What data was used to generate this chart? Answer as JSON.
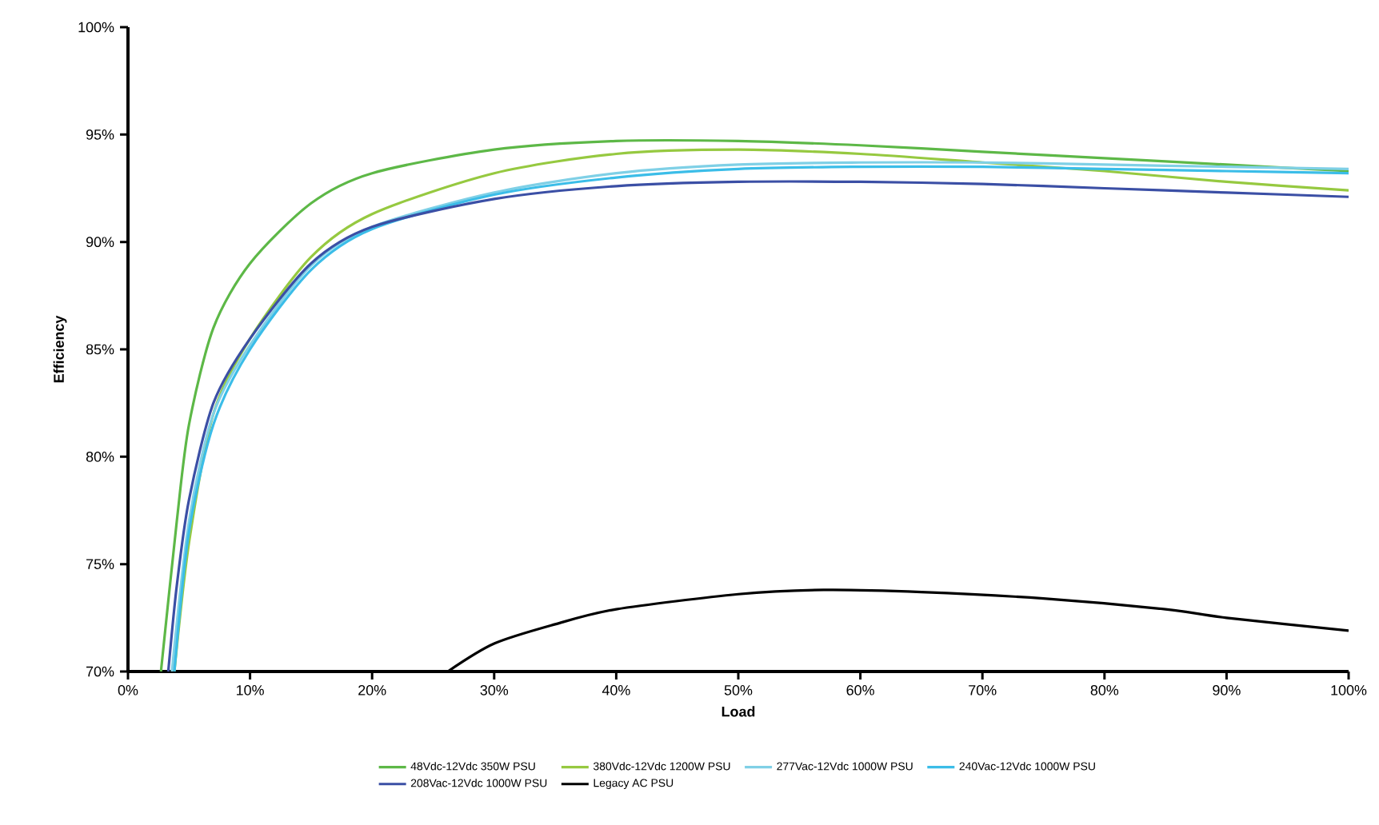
{
  "chart_data": {
    "type": "line",
    "xlabel": "Load",
    "ylabel": "Efficiency",
    "xlim": [
      0,
      100
    ],
    "ylim": [
      70,
      100
    ],
    "xticks": [
      {
        "value": 0,
        "label": "0%"
      },
      {
        "value": 10,
        "label": "10%"
      },
      {
        "value": 20,
        "label": "20%"
      },
      {
        "value": 30,
        "label": "30%"
      },
      {
        "value": 40,
        "label": "40%"
      },
      {
        "value": 50,
        "label": "50%"
      },
      {
        "value": 60,
        "label": "60%"
      },
      {
        "value": 70,
        "label": "70%"
      },
      {
        "value": 80,
        "label": "80%"
      },
      {
        "value": 90,
        "label": "90%"
      },
      {
        "value": 100,
        "label": "100%"
      }
    ],
    "yticks": [
      {
        "value": 70,
        "label": "70%"
      },
      {
        "value": 75,
        "label": "75%"
      },
      {
        "value": 80,
        "label": "80%"
      },
      {
        "value": 85,
        "label": "85%"
      },
      {
        "value": 90,
        "label": "90%"
      },
      {
        "value": 95,
        "label": "95%"
      },
      {
        "value": 100,
        "label": "100%"
      }
    ],
    "grid": false,
    "legend": "bottom",
    "marker": "none",
    "line_style": "solid",
    "series": [
      {
        "name": "48Vdc-12Vdc 350W PSU",
        "color": "#5db847",
        "x": [
          2.7,
          4,
          5,
          7,
          10,
          15,
          20,
          30,
          40,
          50,
          60,
          70,
          80,
          90,
          100
        ],
        "values": [
          70,
          77,
          81.5,
          86,
          89,
          91.8,
          93.2,
          94.3,
          94.7,
          94.7,
          94.5,
          94.2,
          93.9,
          93.6,
          93.3
        ]
      },
      {
        "name": "380Vdc-12Vdc 1200W PSU",
        "color": "#96c940",
        "x": [
          3.8,
          5,
          7,
          10,
          15,
          20,
          30,
          40,
          50,
          60,
          70,
          80,
          90,
          100
        ],
        "values": [
          70,
          76,
          82,
          85.5,
          89.3,
          91.3,
          93.2,
          94.1,
          94.3,
          94.1,
          93.7,
          93.3,
          92.8,
          92.4
        ]
      },
      {
        "name": "277Vac-12Vdc 1000W PSU",
        "color": "#7fd0e6",
        "x": [
          3.6,
          5,
          7,
          10,
          15,
          20,
          30,
          40,
          50,
          60,
          70,
          80,
          90,
          100
        ],
        "values": [
          70,
          77,
          82,
          85.2,
          88.9,
          90.7,
          92.3,
          93.2,
          93.6,
          93.7,
          93.7,
          93.6,
          93.5,
          93.4
        ]
      },
      {
        "name": "240Vac-12Vdc 1000W PSU",
        "color": "#3bbde8",
        "x": [
          3.8,
          5,
          7,
          10,
          15,
          20,
          30,
          40,
          50,
          60,
          70,
          80,
          90,
          100
        ],
        "values": [
          70,
          76.5,
          81.5,
          85,
          88.7,
          90.6,
          92.2,
          93,
          93.4,
          93.5,
          93.5,
          93.4,
          93.3,
          93.2
        ]
      },
      {
        "name": "208Vac-12Vdc 1000W PSU",
        "color": "#3b4fa5",
        "x": [
          3.3,
          4,
          5,
          7,
          10,
          15,
          20,
          30,
          40,
          50,
          60,
          70,
          80,
          90,
          100
        ],
        "values": [
          70,
          74,
          78,
          82.5,
          85.5,
          89,
          90.7,
          92,
          92.6,
          92.8,
          92.8,
          92.7,
          92.5,
          92.3,
          92.1
        ]
      },
      {
        "name": "Legacy AC PSU",
        "color": "#000000",
        "x": [
          26.2,
          30,
          35,
          40,
          50,
          57,
          65,
          75,
          85,
          90,
          100
        ],
        "values": [
          70,
          71.3,
          72.2,
          72.9,
          73.6,
          73.8,
          73.7,
          73.4,
          72.9,
          72.5,
          71.9
        ]
      }
    ]
  }
}
